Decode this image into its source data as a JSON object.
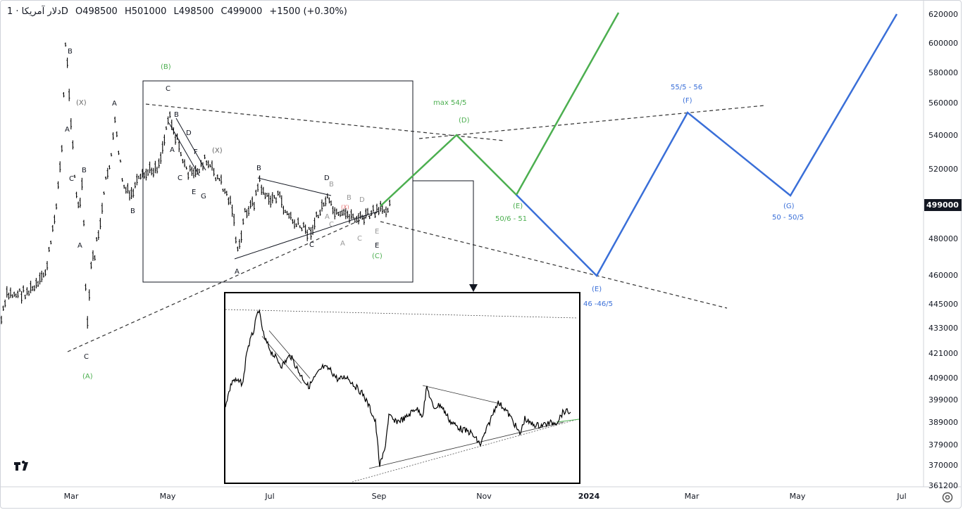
{
  "header": {
    "symbol": "دلار آمریکا · 1D",
    "open": "O498500",
    "high": "H501000",
    "low": "L498500",
    "close": "C499000",
    "change": "+1500 (+0.30%)"
  },
  "price_axis": {
    "ticks": [
      "620000",
      "600000",
      "580000",
      "560000",
      "540000",
      "520000",
      "499000",
      "480000",
      "460000",
      "445000",
      "433000",
      "421000",
      "409000",
      "399000",
      "389000",
      "379000",
      "370000",
      "361200"
    ],
    "last_price": "499000",
    "last_price_color": "#131722"
  },
  "time_axis": {
    "ticks": [
      "Mar",
      "May",
      "Jul",
      "Sep",
      "Nov",
      "2024",
      "Mar",
      "May",
      "Jul"
    ]
  },
  "colors": {
    "green_path": "#4caf50",
    "blue_path": "#3a6fd8",
    "dashed": "#444",
    "bars": "#000"
  },
  "labels": {
    "A_lbl": "(A)",
    "B_lbl": "(B)",
    "C_lbl": "(C)",
    "D_lbl": "(D)",
    "E_green": "(E)",
    "E_blue": "(E)",
    "F_lbl": "(F)",
    "G_lbl": "(G)",
    "X1": "(X)",
    "X2": "(X)",
    "max_d": "max 54/5",
    "e_green_val": "50/6 - 51",
    "e_blue_val": "46 -46/5",
    "f_val": "55/5 - 56",
    "g_val": "50 - 50/5"
  },
  "chart_data": {
    "type": "line",
    "title": "دلار آمریکا · 1D",
    "series": [
      {
        "color": "#4caf50",
        "x": [
          "Sep",
          "Oct",
          "Nov",
          "Dec"
        ],
        "y": [
          499000,
          540000,
          502000,
          620000
        ]
      },
      {
        "color": "#3a6fd8",
        "x": [
          "Nov",
          "Dec",
          "Mar",
          "Apr",
          "Jul"
        ],
        "y": [
          502000,
          460000,
          555000,
          500000,
          620000
        ]
      }
    ],
    "ylim": [
      361200,
      625000
    ],
    "grid": false
  },
  "icons": {
    "logo": "tradingview-logo-icon",
    "settings": "settings-gear-icon"
  }
}
